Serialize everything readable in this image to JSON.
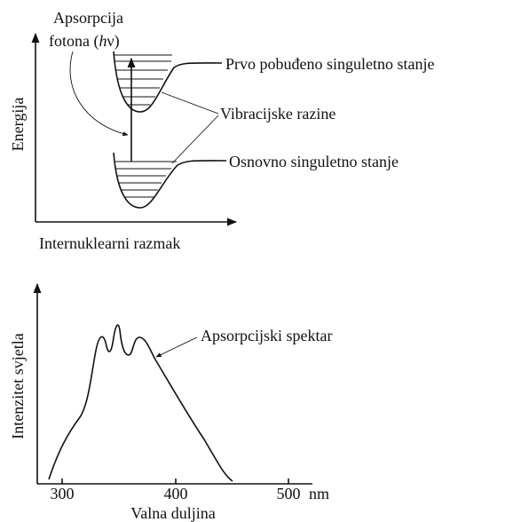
{
  "energy_diagram": {
    "y_axis_label": "Energija",
    "x_axis_label": "Internuklearni razmak",
    "photon_label_line1": "Apsorpcija",
    "photon_label_line2": [
      "fotona (",
      "h",
      "ν)"
    ],
    "excited_state_label": "Prvo pobuđeno singuletno stanje",
    "vibrational_label": "Vibracijske razine",
    "ground_state_label": "Osnovno singuletno stanje"
  },
  "spectrum": {
    "y_axis_label": "Intenzitet svjetla",
    "x_axis_label": "Valna duljina",
    "x_ticks": [
      "300",
      "400",
      "500"
    ],
    "x_unit": "nm",
    "curve_label": "Apsorpcijski spektar"
  }
}
